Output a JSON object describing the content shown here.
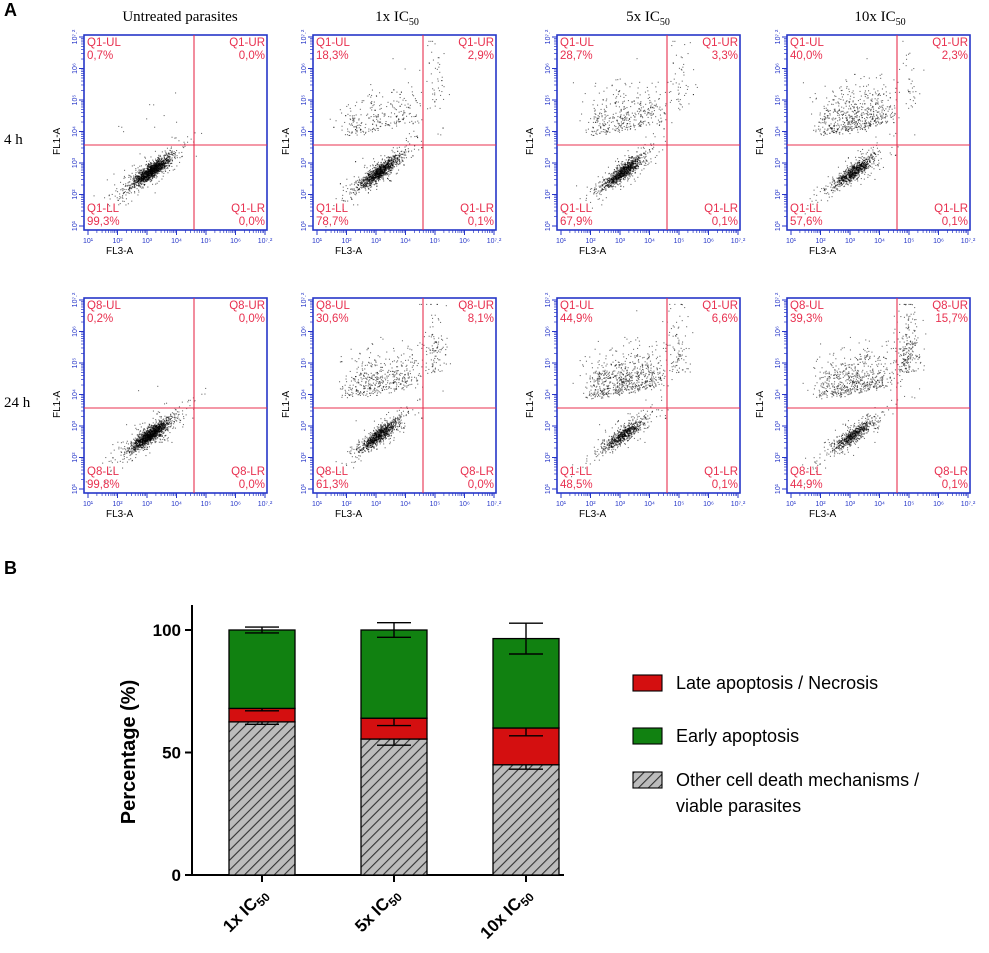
{
  "panel_labels": {
    "a": "A",
    "b": "B"
  },
  "colors": {
    "frame": "#2636c8",
    "quadrant": "#e8304f",
    "late": "#d40f10",
    "early": "#118111",
    "other_bg": "#bcbcbc",
    "other_hatch": "#333333"
  },
  "chart_data": [
    {
      "type": "scatter",
      "title": "A",
      "xlabel": "FL3-A",
      "ylabel": "FL1-A",
      "xticks": [
        "10¹",
        "10²",
        "10³",
        "10⁴",
        "10⁵",
        "10⁶",
        "10⁷.²"
      ],
      "yticks": [
        "10¹",
        "10²",
        "10³",
        "10⁴",
        "10⁵",
        "10⁶",
        "10⁷.²"
      ],
      "columns": [
        {
          "base": "Untreated parasites",
          "sub": ""
        },
        {
          "base": "1x IC",
          "sub": "50"
        },
        {
          "base": "5x IC",
          "sub": "50"
        },
        {
          "base": "10x IC",
          "sub": "50"
        }
      ],
      "rows": [
        {
          "label": "4 h",
          "plots": [
            {
              "UL": [
                "Q1-UL",
                "0,7%"
              ],
              "UR": [
                "Q1-UR",
                "0,0%"
              ],
              "LL": [
                "Q1-LL",
                "99,3%"
              ],
              "LR": [
                "Q1-LR",
                "0,0%"
              ]
            },
            {
              "UL": [
                "Q1-UL",
                "18,3%"
              ],
              "UR": [
                "Q1-UR",
                "2,9%"
              ],
              "LL": [
                "Q1-LL",
                "78,7%"
              ],
              "LR": [
                "Q1-LR",
                "0,1%"
              ]
            },
            {
              "UL": [
                "Q1-UL",
                "28,7%"
              ],
              "UR": [
                "Q1-UR",
                "3,3%"
              ],
              "LL": [
                "Q1-LL",
                "67,9%"
              ],
              "LR": [
                "Q1-LR",
                "0,1%"
              ]
            },
            {
              "UL": [
                "Q1-UL",
                "40,0%"
              ],
              "UR": [
                "Q1-UR",
                "2,3%"
              ],
              "LL": [
                "Q1-LL",
                "57,6%"
              ],
              "LR": [
                "Q1-LR",
                "0,1%"
              ]
            }
          ]
        },
        {
          "label": "24 h",
          "plots": [
            {
              "UL": [
                "Q8-UL",
                "0,2%"
              ],
              "UR": [
                "Q8-UR",
                "0,0%"
              ],
              "LL": [
                "Q8-LL",
                "99,8%"
              ],
              "LR": [
                "Q8-LR",
                "0,0%"
              ]
            },
            {
              "UL": [
                "Q8-UL",
                "30,6%"
              ],
              "UR": [
                "Q8-UR",
                "8,1%"
              ],
              "LL": [
                "Q8-LL",
                "61,3%"
              ],
              "LR": [
                "Q8-LR",
                "0,0%"
              ]
            },
            {
              "UL": [
                "Q1-UL",
                "44,9%"
              ],
              "UR": [
                "Q1-UR",
                "6,6%"
              ],
              "LL": [
                "Q1-LL",
                "48,5%"
              ],
              "LR": [
                "Q1-LR",
                "0,1%"
              ]
            },
            {
              "UL": [
                "Q8-UL",
                "39,3%"
              ],
              "UR": [
                "Q8-UR",
                "15,7%"
              ],
              "LL": [
                "Q8-LL",
                "44,9%"
              ],
              "LR": [
                "Q8-LR",
                "0,1%"
              ]
            }
          ]
        }
      ]
    },
    {
      "type": "bar",
      "stacked": true,
      "title": "B",
      "ylabel": "Percentage  (%)",
      "xlabel": "",
      "ylim": [
        0,
        105
      ],
      "yticks": [
        0,
        50,
        100
      ],
      "categories": [
        {
          "base": "1x IC",
          "sub": "50"
        },
        {
          "base": "5x IC",
          "sub": "50"
        },
        {
          "base": "10x IC",
          "sub": "50"
        }
      ],
      "series": [
        {
          "name": "Other cell death mechanisms / viable parasites",
          "legend_lines": [
            "Other cell death mechanisms /",
            "viable parasites"
          ],
          "values": [
            62.5,
            55.5,
            45
          ],
          "errors": [
            1.0,
            2.5,
            1.8
          ]
        },
        {
          "name": "Late apoptosis / Necrosis",
          "legend_lines": [
            "Late apoptosis / Necrosis"
          ],
          "values": [
            5.5,
            8.5,
            15
          ],
          "errors": [
            1.0,
            3.0,
            3.2
          ]
        },
        {
          "name": "Early apoptosis",
          "legend_lines": [
            "Early apoptosis"
          ],
          "values": [
            32,
            36,
            36.5
          ],
          "errors": [
            1.2,
            3.0,
            6.3
          ]
        }
      ],
      "legend_order": [
        1,
        2,
        0
      ]
    }
  ]
}
